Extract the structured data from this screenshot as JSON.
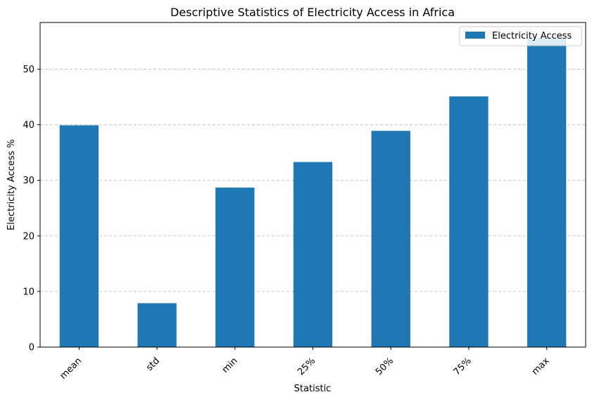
{
  "chart_data": {
    "type": "bar",
    "title": "Descriptive Statistics of Electricity Access in Africa",
    "xlabel": "Statistic",
    "ylabel": "Electricity Access %",
    "categories": [
      "mean",
      "std",
      "min",
      "25%",
      "50%",
      "75%",
      "max"
    ],
    "series": [
      {
        "name": "Electricity Access",
        "values": [
          39.9,
          7.9,
          28.7,
          33.3,
          38.9,
          45.1,
          55.6
        ]
      }
    ],
    "ylim": [
      0,
      58.4
    ],
    "yticks": [
      0,
      10,
      20,
      30,
      40,
      50
    ],
    "grid": "y-dashed",
    "legend_position": "top-right",
    "colors": {
      "bar": "#1f77b4",
      "grid": "#c8c8c8",
      "axis": "#000000"
    }
  }
}
